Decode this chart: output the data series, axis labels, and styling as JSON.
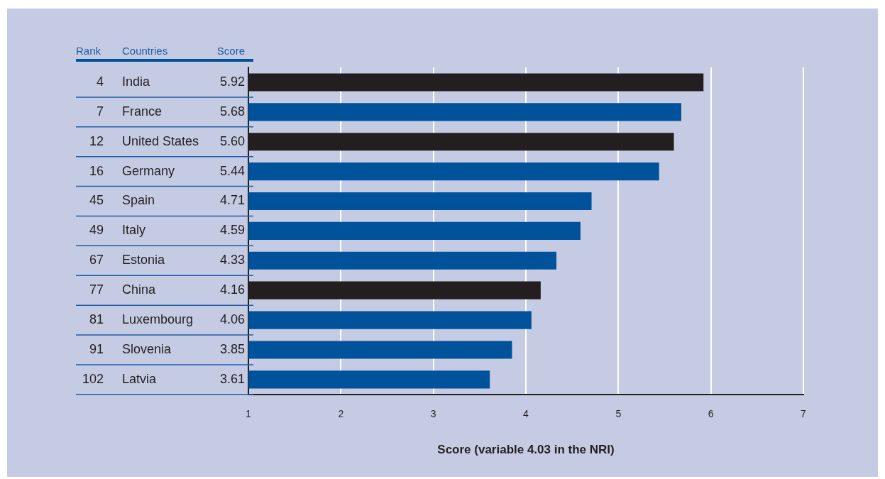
{
  "chart_data": {
    "type": "bar",
    "orientation": "horizontal",
    "xlabel": "Score (variable 4.03 in the NRI)",
    "ylabel": "Countries",
    "categories": [
      "India",
      "France",
      "United States",
      "Germany",
      "Spain",
      "Italy",
      "Estonia",
      "China",
      "Luxembourg",
      "Slovenia",
      "Latvia"
    ],
    "values": [
      5.92,
      5.68,
      5.6,
      5.44,
      4.71,
      4.59,
      4.33,
      4.16,
      4.06,
      3.85,
      3.61
    ],
    "value_labels": [
      "5.92",
      "5.68",
      "5.60",
      "5.44",
      "4.71",
      "4.59",
      "4.33",
      "4.16",
      "4.06",
      "3.85",
      "3.61"
    ],
    "colors": [
      "#231f20",
      "#00529b",
      "#231f20",
      "#00529b",
      "#00529b",
      "#00529b",
      "#00529b",
      "#231f20",
      "#00529b",
      "#00529b",
      "#00529b"
    ],
    "xlim": [
      1,
      7
    ],
    "xticks": [
      1,
      2,
      3,
      4,
      5,
      6,
      7
    ],
    "grid": "x",
    "legend": false,
    "annotations": [
      "Rank",
      "Score",
      "4",
      "7",
      "12",
      "16",
      "45",
      "49",
      "67",
      "77",
      "81",
      "91",
      "102"
    ]
  }
}
